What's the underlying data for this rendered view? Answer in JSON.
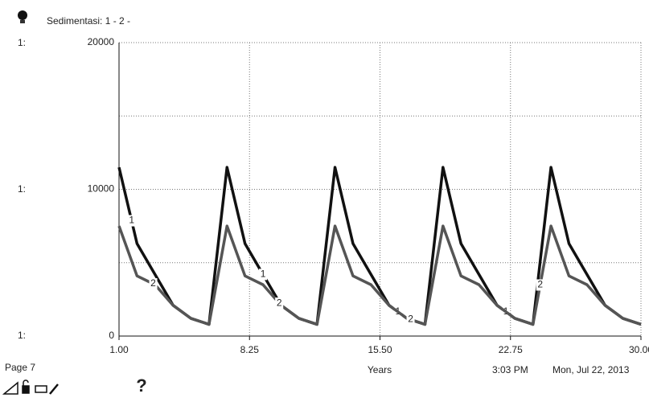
{
  "chart_data": {
    "type": "line",
    "title": "Sedimentasi: 1 - 2 -",
    "y_axis_label": "1:",
    "x_label": "Years",
    "x": [
      1,
      2,
      3,
      4,
      5,
      6,
      7,
      8,
      9,
      10,
      11,
      12,
      13,
      14,
      15,
      16,
      17,
      18,
      19,
      20,
      21,
      22,
      23,
      24,
      25,
      26,
      27,
      28,
      29,
      30
    ],
    "series": [
      {
        "name": "1",
        "color": "#111111",
        "values": [
          11500,
          6300,
          4200,
          2100,
          1200,
          800,
          11500,
          6300,
          4200,
          2100,
          1200,
          800,
          11500,
          6300,
          4200,
          2100,
          1200,
          800,
          11500,
          6300,
          4200,
          2100,
          1200,
          800,
          11500,
          6300,
          4200,
          2100,
          1200,
          800
        ]
      },
      {
        "name": "2",
        "color": "#555555",
        "values": [
          7500,
          4100,
          3500,
          2100,
          1200,
          800,
          7500,
          4100,
          3500,
          2100,
          1200,
          800,
          7500,
          4100,
          3500,
          2100,
          1200,
          800,
          7500,
          4100,
          3500,
          2100,
          1200,
          800,
          7500,
          4100,
          3500,
          2100,
          1200,
          800
        ]
      }
    ],
    "xlim": [
      1,
      30
    ],
    "xticks": [
      {
        "value": 1,
        "label": "1.00"
      },
      {
        "value": 8.25,
        "label": "8.25"
      },
      {
        "value": 15.5,
        "label": "15.50"
      },
      {
        "value": 22.75,
        "label": "22.75"
      },
      {
        "value": 30,
        "label": "30.00"
      }
    ],
    "ylim": [
      0,
      20000
    ],
    "yticks": [
      0,
      10000,
      20000
    ],
    "minor_yticks": [
      5000,
      15000
    ],
    "grid": true,
    "footer": {
      "page": "Page 7",
      "time": "3:03 PM",
      "date": "Mon, Jul 22, 2013",
      "help": "?"
    }
  }
}
